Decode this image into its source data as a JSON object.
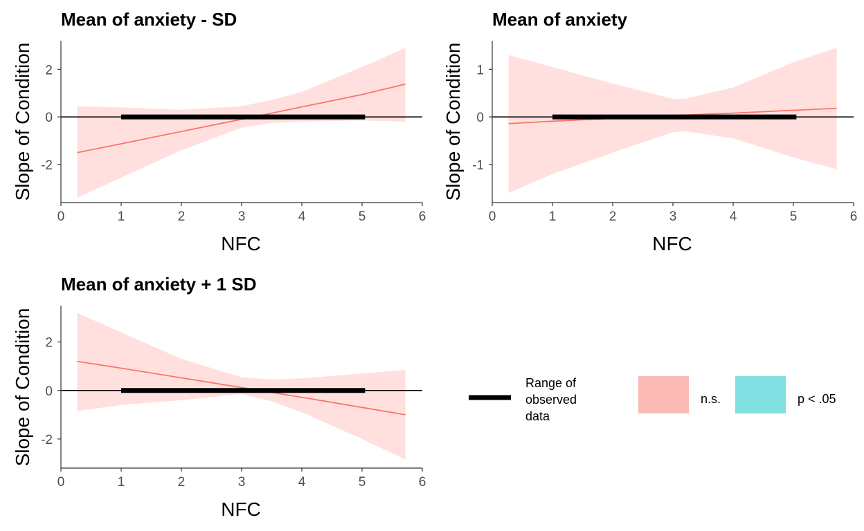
{
  "colors": {
    "ns": "#F8766D",
    "ns_band": "#FFE0DE",
    "sig": "#00BFC4",
    "observed_range": "#000000"
  },
  "legend": {
    "range_label_lines": [
      "Range of",
      "observed",
      "data"
    ],
    "ns_label": "n.s.",
    "sig_label": "p < .05"
  },
  "chart_data": [
    {
      "type": "line",
      "title": "Mean of anxiety - SD",
      "xlabel": "NFC",
      "ylabel": "Slope of Condition",
      "xlim": [
        0,
        6
      ],
      "ylim": [
        -3.6,
        3.2
      ],
      "xticks": [
        0,
        1,
        2,
        3,
        4,
        5,
        6
      ],
      "yticks": [
        -2,
        0,
        2
      ],
      "observed_range": [
        1,
        5.05
      ],
      "reference_line_y": 0,
      "grid": false,
      "series": [
        {
          "significance": "n.s.",
          "x": [
            0.27,
            1,
            2,
            3,
            3.5,
            4,
            5,
            5.72
          ],
          "estimate": [
            -1.5,
            -1.13,
            -0.61,
            -0.1,
            0.16,
            0.42,
            0.94,
            1.38
          ],
          "lower": [
            -3.4,
            -2.55,
            -1.4,
            -0.45,
            -0.25,
            -0.2,
            -0.15,
            -0.2
          ],
          "upper": [
            0.45,
            0.4,
            0.3,
            0.45,
            0.72,
            1.05,
            2.1,
            2.9
          ]
        }
      ]
    },
    {
      "type": "line",
      "title": "Mean of anxiety",
      "xlabel": "NFC",
      "ylabel": "Slope of Condition",
      "xlim": [
        0,
        6
      ],
      "ylim": [
        -1.8,
        1.6
      ],
      "xticks": [
        0,
        1,
        2,
        3,
        4,
        5,
        6
      ],
      "yticks": [
        -1,
        0,
        1
      ],
      "observed_range": [
        1,
        5.05
      ],
      "reference_line_y": 0,
      "grid": false,
      "series": [
        {
          "significance": "n.s.",
          "x": [
            0.27,
            1,
            2,
            3,
            3.2,
            4,
            5,
            5.72
          ],
          "estimate": [
            -0.14,
            -0.09,
            -0.03,
            0.03,
            0.04,
            0.08,
            0.14,
            0.18
          ],
          "lower": [
            -1.6,
            -1.2,
            -0.75,
            -0.32,
            -0.3,
            -0.45,
            -0.85,
            -1.1
          ],
          "upper": [
            1.3,
            1.05,
            0.7,
            0.38,
            0.38,
            0.62,
            1.15,
            1.45
          ]
        }
      ]
    },
    {
      "type": "line",
      "title": "Mean of anxiety + 1 SD",
      "xlabel": "NFC",
      "ylabel": "Slope of Condition",
      "xlim": [
        0,
        6
      ],
      "ylim": [
        -3.2,
        3.5
      ],
      "xticks": [
        0,
        1,
        2,
        3,
        4,
        5,
        6
      ],
      "yticks": [
        -2,
        0,
        2
      ],
      "observed_range": [
        1,
        5.05
      ],
      "reference_line_y": 0,
      "grid": false,
      "series": [
        {
          "significance": "n.s.",
          "x": [
            0.27,
            1,
            2,
            3,
            3.5,
            4,
            5,
            5.72
          ],
          "estimate": [
            1.2,
            0.92,
            0.52,
            0.12,
            -0.08,
            -0.28,
            -0.7,
            -1.0
          ],
          "lower": [
            -0.85,
            -0.6,
            -0.4,
            -0.15,
            -0.45,
            -0.9,
            -2.0,
            -2.85
          ],
          "upper": [
            3.2,
            2.4,
            1.3,
            0.55,
            0.45,
            0.5,
            0.7,
            0.85
          ]
        }
      ]
    }
  ]
}
